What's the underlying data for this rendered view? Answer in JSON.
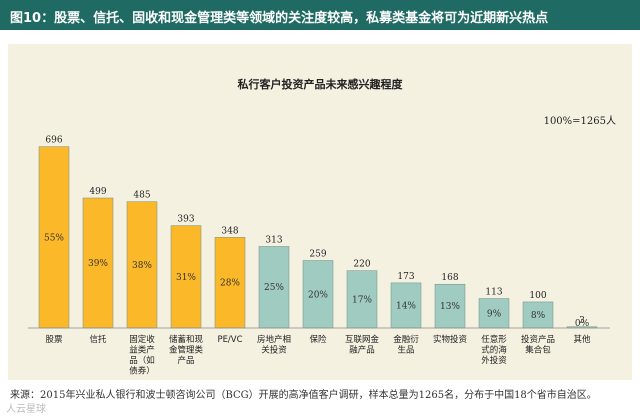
{
  "header": {
    "title": "图10：股票、信托、固收和现金管理类等领域的关注度较高，私募类基金将可为近期新兴热点"
  },
  "colors": {
    "header_bg": "#1f6b63",
    "panel_bg": "#f4f1e1",
    "highlight_bar": "#fbb829",
    "normal_bar": "#9fcbc0"
  },
  "chart_data": {
    "type": "bar",
    "title": "私行客户投资产品未来感兴趣程度",
    "annotation": "100%=1265人",
    "categories": [
      [
        "股票"
      ],
      [
        "信托"
      ],
      [
        "固定收",
        "益类产",
        "品（如",
        "债券）"
      ],
      [
        "储蓄和现",
        "金管理类",
        "产品"
      ],
      [
        "PE/VC"
      ],
      [
        "房地产相",
        "关投资"
      ],
      [
        "保险"
      ],
      [
        "互联网金",
        "融产品"
      ],
      [
        "金融衍",
        "生品"
      ],
      [
        "实物投资"
      ],
      [
        "任意形",
        "式的海",
        "外投资"
      ],
      [
        "投资产品",
        "集合包"
      ],
      [
        "其他"
      ]
    ],
    "values": [
      696,
      499,
      485,
      393,
      348,
      313,
      259,
      220,
      173,
      168,
      113,
      100,
      3
    ],
    "percent_labels": [
      "55%",
      "39%",
      "38%",
      "31%",
      "28%",
      "25%",
      "20%",
      "17%",
      "14%",
      "13%",
      "9%",
      "8%",
      "0%"
    ],
    "highlight": [
      true,
      true,
      true,
      true,
      true,
      false,
      false,
      false,
      false,
      false,
      false,
      false,
      false
    ],
    "ylim": [
      0,
      760
    ],
    "xlabel": "",
    "ylabel": ""
  },
  "footer": {
    "source": "来源：2015年兴业私人银行和波士顿咨询公司（BCG）开展的高净值客户调研，样本总量为1265名，分布于中国18个省市自治区。"
  },
  "watermark": "人云星球"
}
